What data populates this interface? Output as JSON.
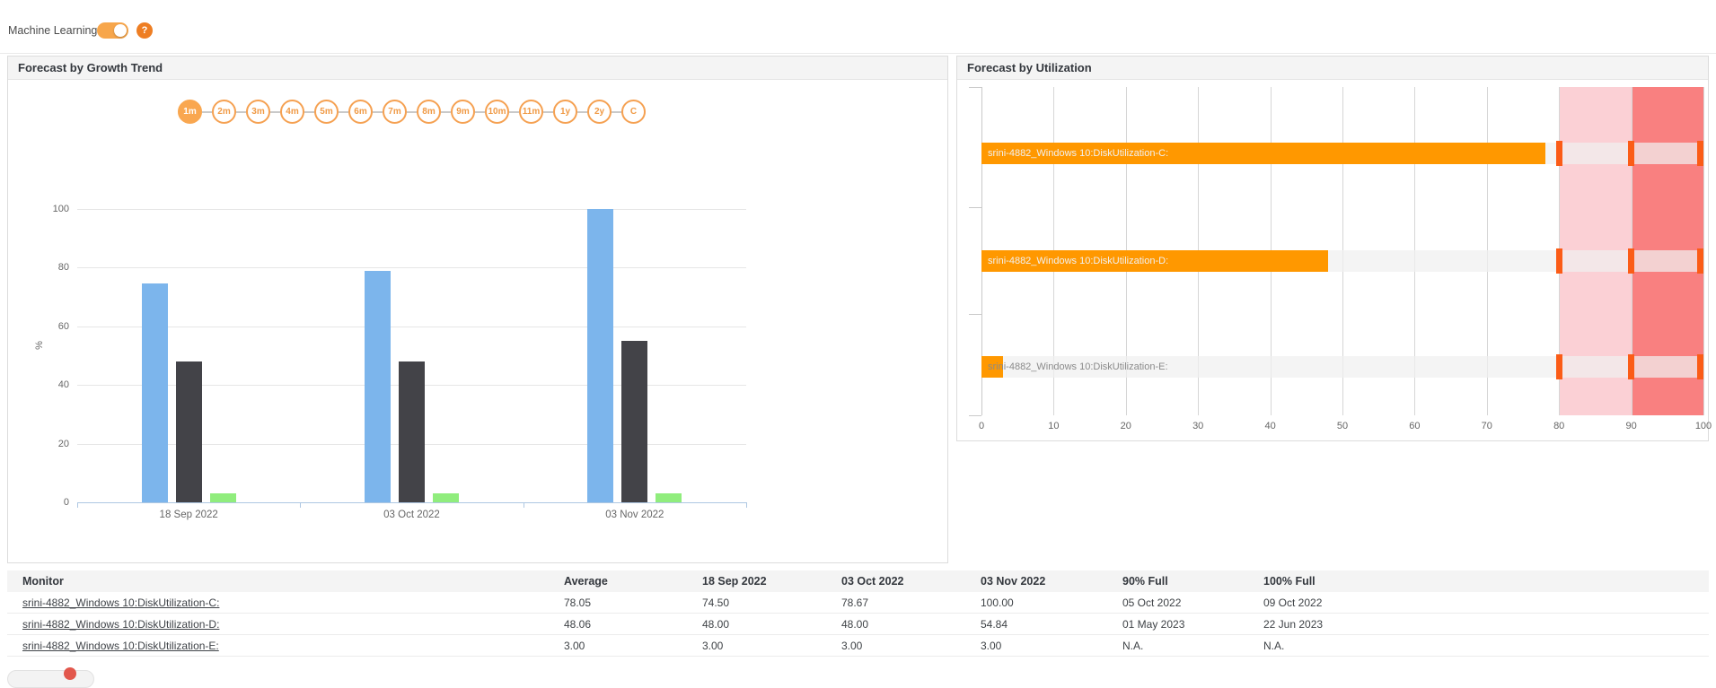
{
  "topbar": {
    "ml_label": "Machine Learning",
    "toggle_state": "on",
    "help_label": "?"
  },
  "growth_panel": {
    "title": "Forecast by Growth Trend",
    "ranges": [
      "1m",
      "2m",
      "3m",
      "4m",
      "5m",
      "6m",
      "7m",
      "8m",
      "9m",
      "10m",
      "11m",
      "1y",
      "2y",
      "C"
    ],
    "active_range": "1m"
  },
  "util_panel": {
    "title": "Forecast by Utilization"
  },
  "chart_data": [
    {
      "type": "bar",
      "title": "Forecast by Growth Trend",
      "categories": [
        "18 Sep 2022",
        "03 Oct 2022",
        "03 Nov 2022"
      ],
      "series": [
        {
          "name": "srini-4882_Windows 10:DiskUtilization-C:",
          "color": "#7cb5ec",
          "values": [
            74.5,
            78.67,
            100.0
          ]
        },
        {
          "name": "srini-4882_Windows 10:DiskUtilization-D:",
          "color": "#434348",
          "values": [
            48.0,
            48.0,
            54.84
          ]
        },
        {
          "name": "srini-4882_Windows 10:DiskUtilization-E:",
          "color": "#90ed7d",
          "values": [
            3.0,
            3.0,
            3.0
          ]
        }
      ],
      "xlabel": "",
      "ylabel": "%",
      "ylim": [
        0,
        100
      ],
      "yticks": [
        0,
        20,
        40,
        60,
        80,
        100
      ],
      "grid": true,
      "legend": "none"
    },
    {
      "type": "bar",
      "orientation": "horizontal",
      "title": "Forecast by Utilization",
      "categories": [
        "srini-4882_Windows 10:DiskUtilization-C:",
        "srini-4882_Windows 10:DiskUtilization-D:",
        "srini-4882_Windows 10:DiskUtilization-E:"
      ],
      "values": [
        78.05,
        48.06,
        3.0
      ],
      "bar_color": "#ff9800",
      "label_colors": [
        "#f1f1f1",
        "#f1f1f1",
        "#8a8a8a"
      ],
      "xlim": [
        0,
        100
      ],
      "xticks": [
        0,
        10,
        20,
        30,
        40,
        50,
        60,
        70,
        80,
        90,
        100
      ],
      "plot_bands": [
        {
          "from": 80,
          "to": 90,
          "color": "#fbd0d5"
        },
        {
          "from": 90,
          "to": 100,
          "color": "#f98080"
        }
      ],
      "threshold_markers": {
        "values": [
          80,
          90,
          100
        ],
        "color": "#fb5c17"
      },
      "grid": true,
      "legend": "none"
    }
  ],
  "table": {
    "columns": [
      "Monitor",
      "Average",
      "18 Sep 2022",
      "03 Oct 2022",
      "03 Nov 2022",
      "90% Full",
      "100% Full"
    ],
    "rows": [
      [
        "srini-4882_Windows 10:DiskUtilization-C:",
        "78.05",
        "74.50",
        "78.67",
        "100.00",
        "05 Oct 2022",
        "09 Oct 2022"
      ],
      [
        "srini-4882_Windows 10:DiskUtilization-D:",
        "48.06",
        "48.00",
        "48.00",
        "54.84",
        "01 May 2023",
        "22 Jun 2023"
      ],
      [
        "srini-4882_Windows 10:DiskUtilization-E:",
        "3.00",
        "3.00",
        "3.00",
        "3.00",
        "N.A.",
        "N.A."
      ]
    ]
  },
  "colors": {
    "accent_orange": "#f9a750",
    "bar_orange": "#ff9800",
    "marker_red": "#fb5c17",
    "band_pink": "#fbd0d5",
    "band_red": "#f98080",
    "series_blue": "#7cb5ec",
    "series_dark": "#434348",
    "series_green": "#90ed7d"
  }
}
